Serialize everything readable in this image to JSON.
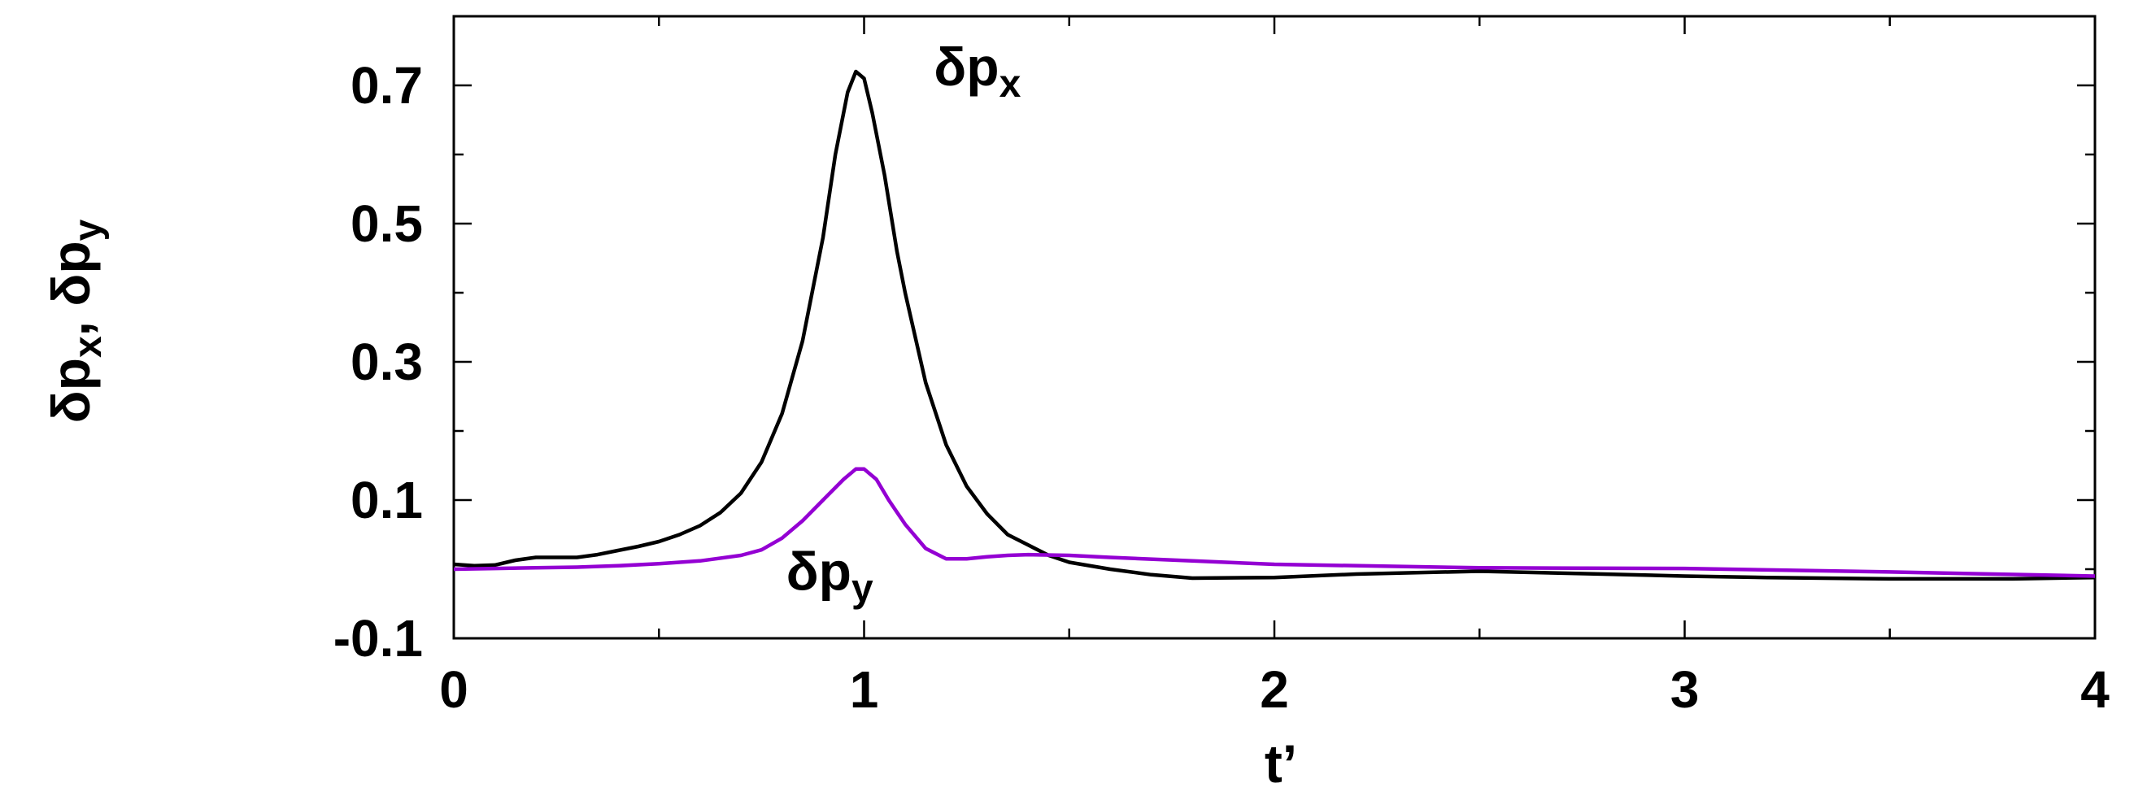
{
  "chart_data": {
    "type": "line",
    "title": "",
    "xlabel": "t’",
    "ylabel": {
      "main": "δp",
      "sub_x": "x",
      "sep": ", ",
      "sub_y": "y"
    },
    "xlim": [
      0,
      4
    ],
    "ylim": [
      -0.1,
      0.8
    ],
    "x_ticks": [
      0,
      1,
      2,
      3,
      4
    ],
    "x_tick_labels": [
      "0",
      "1",
      "2",
      "3",
      "4"
    ],
    "x_minor_step": 0.5,
    "y_ticks": [
      -0.1,
      0.1,
      0.3,
      0.5,
      0.7
    ],
    "y_tick_labels": [
      "-0.1",
      "0.1",
      "0.3",
      "0.5",
      "0.7"
    ],
    "y_minor_step": 0.1,
    "grid": false,
    "series": [
      {
        "label_main": "δp",
        "label_sub": "x",
        "label_at": [
          1.17,
          0.7
        ],
        "color": "#000000",
        "x": [
          0,
          0.05,
          0.1,
          0.15,
          0.2,
          0.25,
          0.3,
          0.35,
          0.4,
          0.45,
          0.5,
          0.55,
          0.6,
          0.65,
          0.7,
          0.75,
          0.8,
          0.85,
          0.9,
          0.93,
          0.96,
          0.98,
          1.0,
          1.02,
          1.05,
          1.08,
          1.1,
          1.15,
          1.2,
          1.25,
          1.3,
          1.35,
          1.4,
          1.45,
          1.5,
          1.6,
          1.7,
          1.8,
          2.0,
          2.2,
          2.5,
          2.8,
          3.0,
          3.2,
          3.5,
          3.8,
          4.0
        ],
        "y": [
          0.007,
          0.005,
          0.006,
          0.013,
          0.017,
          0.017,
          0.017,
          0.021,
          0.027,
          0.033,
          0.04,
          0.05,
          0.063,
          0.082,
          0.11,
          0.155,
          0.225,
          0.33,
          0.48,
          0.6,
          0.69,
          0.72,
          0.71,
          0.66,
          0.57,
          0.46,
          0.4,
          0.27,
          0.18,
          0.12,
          0.08,
          0.05,
          0.035,
          0.02,
          0.01,
          0.0,
          -0.008,
          -0.013,
          -0.012,
          -0.007,
          -0.003,
          -0.007,
          -0.01,
          -0.012,
          -0.014,
          -0.014,
          -0.012
        ]
      },
      {
        "label_main": "δp",
        "label_sub": "y",
        "label_at": [
          0.81,
          -0.03
        ],
        "color": "#9400d3",
        "x": [
          0,
          0.1,
          0.2,
          0.3,
          0.4,
          0.5,
          0.6,
          0.7,
          0.75,
          0.8,
          0.85,
          0.9,
          0.95,
          0.98,
          1.0,
          1.03,
          1.06,
          1.1,
          1.15,
          1.2,
          1.25,
          1.3,
          1.35,
          1.4,
          1.5,
          1.6,
          1.8,
          2.0,
          2.5,
          3.0,
          3.5,
          4.0
        ],
        "y": [
          0.0,
          0.001,
          0.002,
          0.003,
          0.005,
          0.008,
          0.012,
          0.02,
          0.028,
          0.045,
          0.07,
          0.1,
          0.13,
          0.145,
          0.145,
          0.13,
          0.1,
          0.065,
          0.03,
          0.015,
          0.015,
          0.018,
          0.02,
          0.021,
          0.02,
          0.017,
          0.012,
          0.007,
          0.002,
          0.001,
          -0.004,
          -0.01
        ]
      }
    ]
  }
}
